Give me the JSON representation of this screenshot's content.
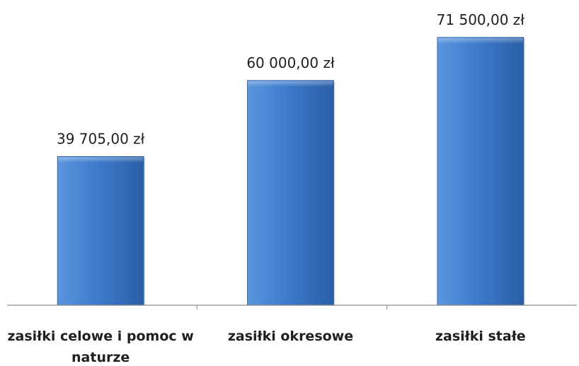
{
  "chart_data": {
    "type": "bar",
    "title": "",
    "xlabel": "",
    "ylabel": "",
    "categories": [
      [
        "zasiłki celowe i pomoc w",
        "naturze"
      ],
      [
        "zasiłki okresowe"
      ],
      [
        "zasiłki stałe"
      ]
    ],
    "values": [
      39705,
      60000,
      71500
    ],
    "value_labels": [
      "39 705,00 zł",
      "60 000,00 zł",
      "71 500,00 zł"
    ],
    "ylim": [
      0,
      81100
    ],
    "grid": false,
    "legend": "none",
    "colors": {
      "bar_light": "#5b95de",
      "bar_mid": "#3e7bcc",
      "bar_dark": "#2a5ea6",
      "axis": "#8c8c8c"
    }
  }
}
